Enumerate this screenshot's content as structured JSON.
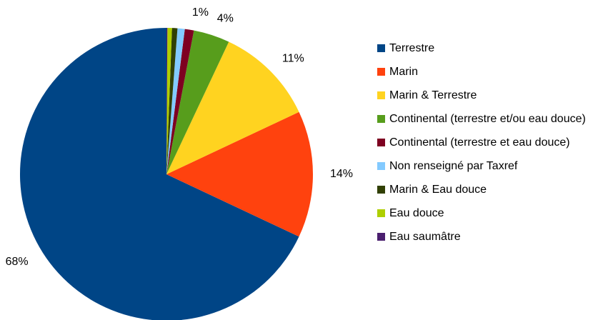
{
  "chart_data": {
    "type": "pie",
    "categories": [
      "Terrestre",
      "Marin",
      "Marin & Terrestre",
      "Continental (terrestre et/ou eau douce)",
      "Continental (terrestre et eau douce)",
      "Non renseigné par Taxref",
      "Marin & Eau douce",
      "Eau douce",
      "Eau saumâtre"
    ],
    "values": [
      68,
      14,
      11,
      4,
      1,
      0.8,
      0.6,
      0.5,
      0.1
    ],
    "value_labels": [
      "68%",
      "14%",
      "11%",
      "4%",
      "1%",
      null,
      null,
      null,
      null
    ],
    "colors": [
      "#004586",
      "#ff420e",
      "#ffd320",
      "#579d1c",
      "#7e0021",
      "#83caff",
      "#314004",
      "#aecf00",
      "#4b1f6f"
    ],
    "legend": "right"
  }
}
